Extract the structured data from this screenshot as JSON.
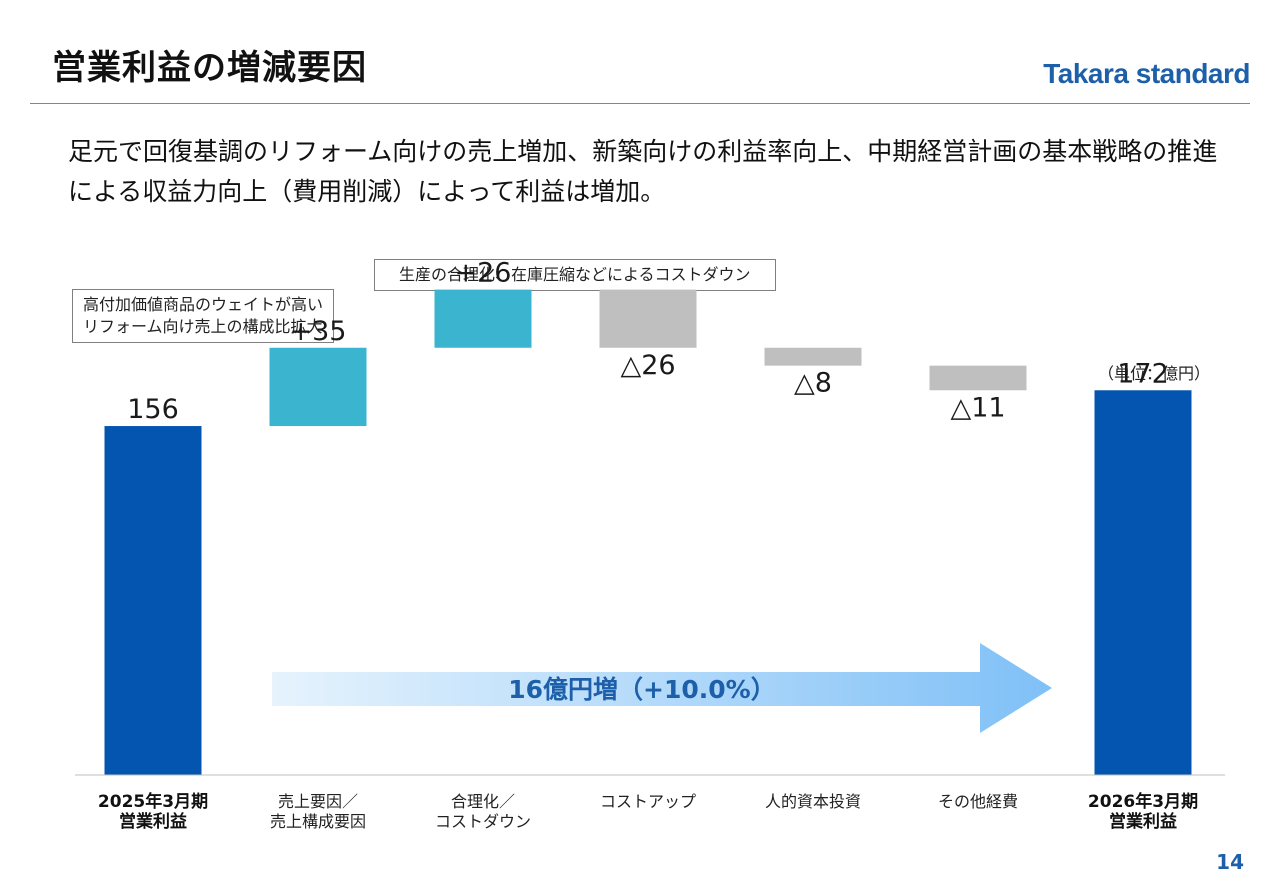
{
  "header": {
    "title": "営業利益の増減要因",
    "logo_text": "Takara standard"
  },
  "lead_text": "足元で回復基調のリフォーム向けの売上増加、新築向けの利益率向上、中期経営計画の基本戦略の推進による収益力向上（費用削減）によって利益は増加。",
  "callouts": {
    "sales": "高付加価値商品のウェイトが高い\nリフォーム向け売上の構成比拡大",
    "rationalization": "生産の合理化、在庫圧縮などによるコストダウン"
  },
  "unit_label": "（単位：億円）",
  "page_number": "14",
  "colors": {
    "total": "#0455b0",
    "increase": "#3bb4d0",
    "decrease": "#bfbfbf",
    "arrow_text": "#1d5fa9",
    "arrow_start": "#e6f3fd",
    "arrow_end": "#7fc0f7"
  },
  "chart_data": {
    "type": "bar",
    "subtype": "waterfall",
    "categories": [
      "2025年3月期\n営業利益",
      "売上要因／\n売上構成要因",
      "合理化／\nコストダウン",
      "コストアップ",
      "人的資本投資",
      "その他経費",
      "2026年3月期\n営業利益"
    ],
    "values": [
      156,
      35,
      26,
      -26,
      -8,
      -11,
      172
    ],
    "kinds": [
      "total",
      "increase",
      "increase",
      "decrease",
      "decrease",
      "decrease",
      "total"
    ],
    "data_labels": [
      "156",
      "+35",
      "+26",
      "△26",
      "△8",
      "△11",
      "172"
    ],
    "annotation": "16億円増（+10.0%）",
    "ylim": [
      0,
      190
    ],
    "grid": false,
    "legend": "none"
  }
}
